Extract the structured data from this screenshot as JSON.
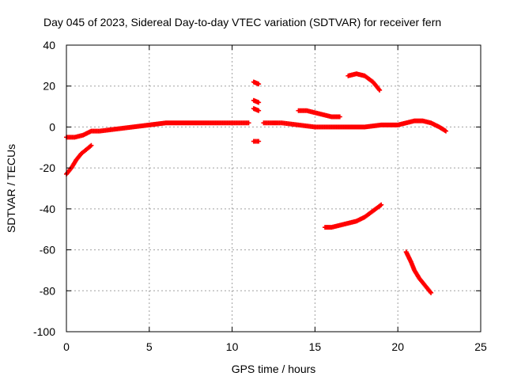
{
  "chart_data": {
    "type": "scatter",
    "title": "Day 045 of 2023, Sidereal Day-to-day VTEC variation (SDTVAR) for receiver fern",
    "xlabel": "GPS time / hours",
    "ylabel": "SDTVAR / TECUs",
    "xlim": [
      0,
      25
    ],
    "ylim": [
      -100,
      40
    ],
    "xticks": [
      0,
      5,
      10,
      15,
      20,
      25
    ],
    "yticks": [
      -100,
      -80,
      -60,
      -40,
      -20,
      0,
      20,
      40
    ],
    "grid": true,
    "marker_color": "#ff0000",
    "segments": [
      {
        "x": [
          0.0,
          0.5,
          1.0,
          1.5,
          2.0,
          3.0,
          4.0,
          5.0,
          6.0,
          7.0,
          8.0,
          9.0,
          10.0,
          11.0
        ],
        "y": [
          -5,
          -5,
          -4,
          -2,
          -2,
          -1,
          0,
          1,
          2,
          2,
          2,
          2,
          2,
          2
        ]
      },
      {
        "x": [
          0.0,
          0.3,
          0.6,
          0.9,
          1.2,
          1.5
        ],
        "y": [
          -23,
          -20,
          -16,
          -13,
          -11,
          -9
        ]
      },
      {
        "x": [
          11.3,
          11.6
        ],
        "y": [
          22,
          21
        ]
      },
      {
        "x": [
          11.3,
          11.6
        ],
        "y": [
          13,
          12
        ]
      },
      {
        "x": [
          11.3,
          11.6
        ],
        "y": [
          9,
          8
        ]
      },
      {
        "x": [
          11.3,
          11.6
        ],
        "y": [
          -7,
          -7
        ]
      },
      {
        "x": [
          11.9,
          13.0,
          14.0,
          15.0,
          16.0,
          17.0,
          18.0,
          19.0,
          20.0,
          21.0,
          21.5,
          22.0,
          22.5,
          22.9
        ],
        "y": [
          2,
          2,
          1,
          0,
          0,
          0,
          0,
          1,
          1,
          3,
          3,
          2,
          0,
          -2
        ]
      },
      {
        "x": [
          14.0,
          14.5,
          15.0,
          15.5,
          16.0,
          16.5
        ],
        "y": [
          8,
          8,
          7,
          6,
          5,
          5
        ]
      },
      {
        "x": [
          17.0,
          17.5,
          18.0,
          18.5,
          18.9
        ],
        "y": [
          25,
          26,
          25,
          22,
          18
        ]
      },
      {
        "x": [
          15.6,
          16.0,
          16.5,
          17.0,
          17.5,
          18.0,
          18.5,
          19.0
        ],
        "y": [
          -49,
          -49,
          -48,
          -47,
          -46,
          -44,
          -41,
          -38
        ]
      },
      {
        "x": [
          20.5,
          20.8,
          21.0,
          21.3,
          21.6,
          22.0
        ],
        "y": [
          -61,
          -66,
          -70,
          -74,
          -77,
          -81
        ]
      }
    ]
  }
}
